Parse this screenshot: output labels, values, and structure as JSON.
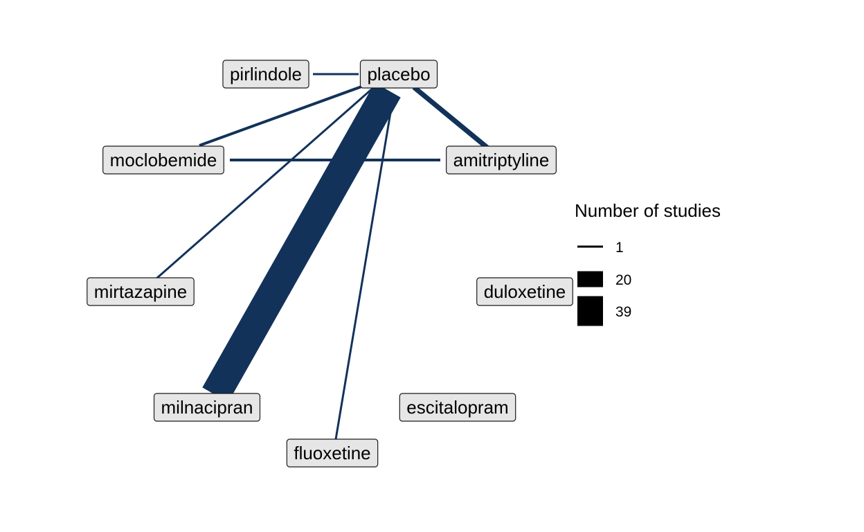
{
  "legend": {
    "title": "Number of studies",
    "items": [
      {
        "label": "1",
        "studies": 1
      },
      {
        "label": "20",
        "studies": 20
      },
      {
        "label": "39",
        "studies": 39
      }
    ],
    "color": "#000000"
  },
  "edge_color": "#12325a",
  "nodes": [
    {
      "id": "pirlindole",
      "label": "pirlindole"
    },
    {
      "id": "placebo",
      "label": "placebo"
    },
    {
      "id": "moclobemide",
      "label": "moclobemide"
    },
    {
      "id": "amitriptyline",
      "label": "amitriptyline"
    },
    {
      "id": "mirtazapine",
      "label": "mirtazapine"
    },
    {
      "id": "duloxetine",
      "label": "duloxetine"
    },
    {
      "id": "milnacipran",
      "label": "milnacipran"
    },
    {
      "id": "escitalopram",
      "label": "escitalopram"
    },
    {
      "id": "fluoxetine",
      "label": "fluoxetine"
    }
  ],
  "edges": [
    {
      "from": "pirlindole",
      "to": "placebo",
      "studies": 1
    },
    {
      "from": "placebo",
      "to": "moclobemide",
      "studies": 2
    },
    {
      "from": "placebo",
      "to": "mirtazapine",
      "studies": 1
    },
    {
      "from": "placebo",
      "to": "milnacipran",
      "studies": 39
    },
    {
      "from": "placebo",
      "to": "fluoxetine",
      "studies": 1
    },
    {
      "from": "placebo",
      "to": "amitriptyline",
      "studies": 5
    },
    {
      "from": "moclobemide",
      "to": "amitriptyline",
      "studies": 2
    }
  ]
}
